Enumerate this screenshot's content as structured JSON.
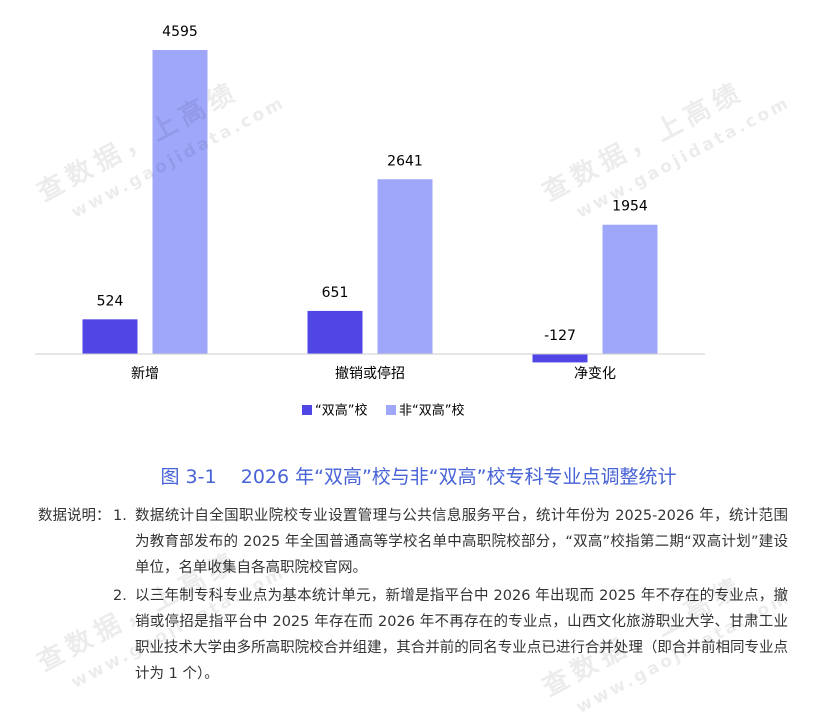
{
  "chart_data": {
    "type": "bar",
    "categories": [
      "新增",
      "撤销或停招",
      "净变化"
    ],
    "series": [
      {
        "name": "“双高”校",
        "color": "#5046e6",
        "values": [
          524,
          651,
          -127
        ]
      },
      {
        "name": "非“双高”校",
        "color": "#9ea7fa",
        "values": [
          4595,
          2641,
          1954
        ]
      }
    ],
    "legend": "bottom"
  },
  "caption": "图 3-1    2026 年“双高”校与非“双高”校专科专业点调整统计",
  "notes": {
    "label": "数据说明：",
    "items": [
      {
        "number": "1.",
        "text": "数据统计自全国职业院校专业设置管理与公共信息服务平台，统计年份为 2025-2026 年，统计范围为教育部发布的 2025 年全国普通高等学校名单中高职院校部分，“双高”校指第二期“双高计划”建设单位，名单收集自各高职院校官网。"
      },
      {
        "number": "2.",
        "text": "以三年制专科专业点为基本统计单元，新增是指平台中 2026 年出现而 2025 年不存在的专业点，撤销或停招是指平台中 2025 年存在而 2026 年不再存在的专业点，山西文化旅游职业大学、甘肃工业职业技术大学由多所高职院校合并组建，其合并前的同名专业点已进行合并处理（即合并前相同专业点计为 1 个）。"
      }
    ]
  },
  "watermark": {
    "brand": "查数据，上高绩",
    "site": "www.gaojidata.com"
  }
}
